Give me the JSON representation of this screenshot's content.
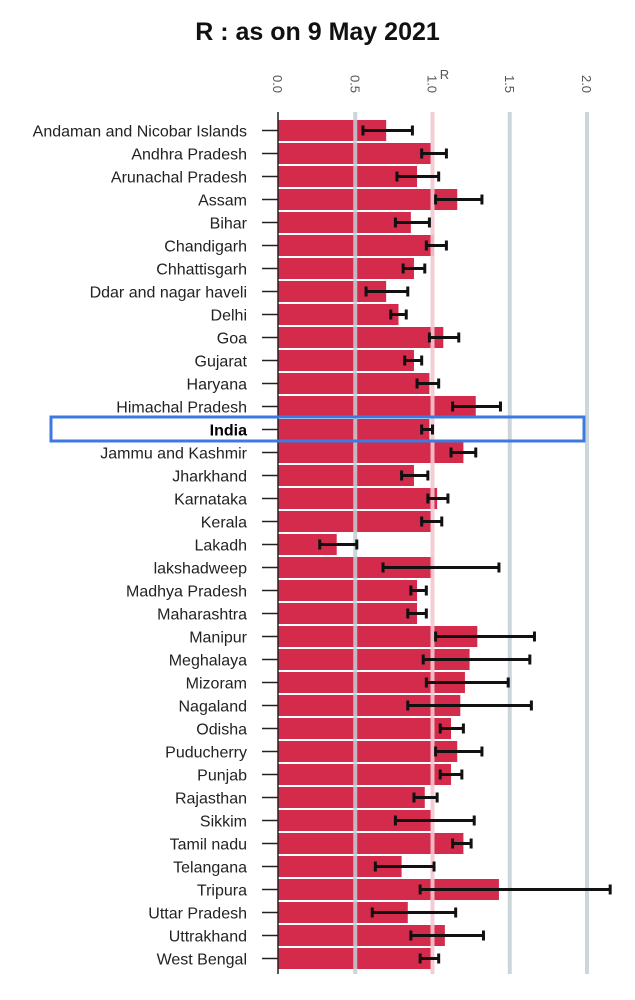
{
  "chart_data": {
    "type": "bar",
    "orientation": "horizontal",
    "title": "R : as on 9 May 2021",
    "xlabel": "R",
    "ylabel": "",
    "xlim": [
      0,
      2.0
    ],
    "x_ticks": [
      "0.0",
      "0.5",
      "1.0",
      "1.5",
      "2.0"
    ],
    "x_tick_values": [
      0,
      0.5,
      1.0,
      1.5,
      2.0
    ],
    "reference_line": 1.0,
    "grid": true,
    "highlight": "India",
    "colors": {
      "bar": "#d42a4b",
      "error_bar": "#111111",
      "grid": "#c2cfd3",
      "reference": "#f2c6cf",
      "highlight_box": "#3c7ae0"
    },
    "categories": [
      "Andaman and Nicobar Islands",
      "Andhra Pradesh",
      "Arunachal Pradesh",
      "Assam",
      "Bihar",
      "Chandigarh",
      "Chhattisgarh",
      "Ddar and nagar haveli",
      "Delhi",
      "Goa",
      "Gujarat",
      "Haryana",
      "Himachal Pradesh",
      "India",
      "Jammu and Kashmir",
      "Jharkhand",
      "Karnataka",
      "Kerala",
      "Lakadh",
      "lakshadweep",
      "Madhya Pradesh",
      "Maharashtra",
      "Manipur",
      "Meghalaya",
      "Mizoram",
      "Nagaland",
      "Odisha",
      "Puducherry",
      "Punjab",
      "Rajasthan",
      "Sikkim",
      "Tamil nadu",
      "Telangana",
      "Tripura",
      "Uttar Pradesh",
      "Uttrakhand",
      "West Bengal"
    ],
    "values": [
      0.7,
      0.99,
      0.9,
      1.16,
      0.86,
      1.01,
      0.88,
      0.7,
      0.78,
      1.07,
      0.88,
      0.98,
      1.28,
      0.98,
      1.2,
      0.88,
      1.03,
      0.99,
      0.38,
      1.0,
      0.9,
      0.9,
      1.29,
      1.24,
      1.21,
      1.18,
      1.12,
      1.16,
      1.12,
      0.95,
      0.99,
      1.2,
      0.8,
      1.43,
      0.84,
      1.08,
      0.99
    ],
    "lower": [
      0.55,
      0.93,
      0.77,
      1.02,
      0.76,
      0.96,
      0.81,
      0.57,
      0.73,
      0.98,
      0.82,
      0.9,
      1.13,
      0.93,
      1.12,
      0.8,
      0.97,
      0.93,
      0.27,
      0.68,
      0.86,
      0.84,
      1.02,
      0.94,
      0.96,
      0.84,
      1.05,
      1.02,
      1.05,
      0.88,
      0.76,
      1.13,
      0.63,
      0.92,
      0.61,
      0.86,
      0.92
    ],
    "upper": [
      0.87,
      1.09,
      1.04,
      1.32,
      0.98,
      1.09,
      0.95,
      0.84,
      0.83,
      1.17,
      0.93,
      1.04,
      1.44,
      1.0,
      1.28,
      0.97,
      1.1,
      1.06,
      0.51,
      1.43,
      0.96,
      0.96,
      1.66,
      1.63,
      1.49,
      1.64,
      1.2,
      1.32,
      1.19,
      1.03,
      1.27,
      1.25,
      1.01,
      2.15,
      1.15,
      1.33,
      1.04
    ]
  }
}
